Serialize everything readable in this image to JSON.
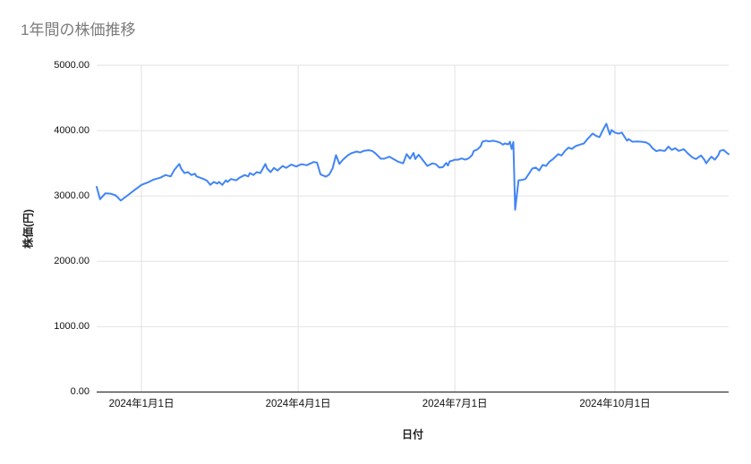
{
  "chart_data": {
    "type": "line",
    "title": "1年間の株価推移",
    "xlabel": "日付",
    "ylabel": "株価(円)",
    "ylim": [
      0,
      5000
    ],
    "grid": true,
    "legend_position": "none",
    "colors": {
      "line": "#4285f4",
      "grid": "#e2e2e2",
      "axis_line": "#333333",
      "title_text": "#7b7b7b",
      "tick_text": "#111111"
    },
    "y_ticks": [
      {
        "value": 0,
        "label": "0.00"
      },
      {
        "value": 1000,
        "label": "1000.00"
      },
      {
        "value": 2000,
        "label": "2000.00"
      },
      {
        "value": 3000,
        "label": "3000.00"
      },
      {
        "value": 4000,
        "label": "4000.00"
      },
      {
        "value": 5000,
        "label": "5000.00"
      }
    ],
    "x_domain": [
      0,
      367
    ],
    "x_ticks": [
      {
        "x": 26,
        "label": "2024年1月1日"
      },
      {
        "x": 117,
        "label": "2024年4月1日"
      },
      {
        "x": 208,
        "label": "2024年7月1日"
      },
      {
        "x": 301,
        "label": "2024年10月1日"
      }
    ],
    "series": [
      {
        "color": "#4285f4",
        "points": [
          [
            0,
            3140
          ],
          [
            2,
            2950
          ],
          [
            5,
            3040
          ],
          [
            8,
            3035
          ],
          [
            11,
            3010
          ],
          [
            14,
            2930
          ],
          [
            18,
            3010
          ],
          [
            22,
            3090
          ],
          [
            26,
            3170
          ],
          [
            30,
            3210
          ],
          [
            33,
            3250
          ],
          [
            37,
            3280
          ],
          [
            40,
            3320
          ],
          [
            43,
            3300
          ],
          [
            45,
            3395
          ],
          [
            48,
            3490
          ],
          [
            49,
            3420
          ],
          [
            51,
            3350
          ],
          [
            53,
            3365
          ],
          [
            55,
            3320
          ],
          [
            57,
            3340
          ],
          [
            58,
            3300
          ],
          [
            60,
            3280
          ],
          [
            62,
            3260
          ],
          [
            64,
            3235
          ],
          [
            66,
            3170
          ],
          [
            68,
            3215
          ],
          [
            70,
            3190
          ],
          [
            71,
            3215
          ],
          [
            73,
            3170
          ],
          [
            75,
            3240
          ],
          [
            76,
            3215
          ],
          [
            78,
            3260
          ],
          [
            81,
            3240
          ],
          [
            83,
            3280
          ],
          [
            86,
            3320
          ],
          [
            88,
            3300
          ],
          [
            89,
            3350
          ],
          [
            91,
            3320
          ],
          [
            93,
            3365
          ],
          [
            95,
            3350
          ],
          [
            96,
            3395
          ],
          [
            98,
            3490
          ],
          [
            99,
            3420
          ],
          [
            101,
            3365
          ],
          [
            103,
            3430
          ],
          [
            105,
            3390
          ],
          [
            108,
            3460
          ],
          [
            110,
            3430
          ],
          [
            113,
            3480
          ],
          [
            116,
            3450
          ],
          [
            117,
            3465
          ],
          [
            119,
            3485
          ],
          [
            122,
            3470
          ],
          [
            126,
            3520
          ],
          [
            128,
            3510
          ],
          [
            130,
            3330
          ],
          [
            133,
            3295
          ],
          [
            135,
            3325
          ],
          [
            137,
            3420
          ],
          [
            139,
            3625
          ],
          [
            141,
            3490
          ],
          [
            143,
            3555
          ],
          [
            146,
            3625
          ],
          [
            148,
            3655
          ],
          [
            151,
            3680
          ],
          [
            153,
            3665
          ],
          [
            155,
            3690
          ],
          [
            158,
            3700
          ],
          [
            160,
            3690
          ],
          [
            162,
            3650
          ],
          [
            165,
            3570
          ],
          [
            167,
            3570
          ],
          [
            170,
            3600
          ],
          [
            172,
            3570
          ],
          [
            175,
            3525
          ],
          [
            178,
            3500
          ],
          [
            180,
            3640
          ],
          [
            182,
            3570
          ],
          [
            184,
            3660
          ],
          [
            185,
            3565
          ],
          [
            187,
            3630
          ],
          [
            190,
            3530
          ],
          [
            192,
            3460
          ],
          [
            195,
            3500
          ],
          [
            197,
            3485
          ],
          [
            199,
            3435
          ],
          [
            201,
            3440
          ],
          [
            203,
            3505
          ],
          [
            204,
            3465
          ],
          [
            205,
            3530
          ],
          [
            207,
            3545
          ],
          [
            208,
            3555
          ],
          [
            210,
            3555
          ],
          [
            212,
            3575
          ],
          [
            214,
            3555
          ],
          [
            216,
            3575
          ],
          [
            218,
            3625
          ],
          [
            219,
            3690
          ],
          [
            221,
            3710
          ],
          [
            223,
            3760
          ],
          [
            224,
            3830
          ],
          [
            226,
            3845
          ],
          [
            228,
            3835
          ],
          [
            230,
            3845
          ],
          [
            232,
            3835
          ],
          [
            234,
            3820
          ],
          [
            236,
            3785
          ],
          [
            237,
            3805
          ],
          [
            239,
            3790
          ],
          [
            240,
            3830
          ],
          [
            241,
            3720
          ],
          [
            242,
            3825
          ],
          [
            243,
            2790
          ],
          [
            245,
            3240
          ],
          [
            247,
            3245
          ],
          [
            249,
            3260
          ],
          [
            251,
            3340
          ],
          [
            253,
            3420
          ],
          [
            255,
            3435
          ],
          [
            257,
            3390
          ],
          [
            259,
            3475
          ],
          [
            261,
            3460
          ],
          [
            263,
            3525
          ],
          [
            265,
            3565
          ],
          [
            266,
            3590
          ],
          [
            268,
            3640
          ],
          [
            270,
            3620
          ],
          [
            272,
            3690
          ],
          [
            274,
            3740
          ],
          [
            276,
            3720
          ],
          [
            278,
            3760
          ],
          [
            280,
            3780
          ],
          [
            283,
            3805
          ],
          [
            285,
            3870
          ],
          [
            288,
            3955
          ],
          [
            290,
            3920
          ],
          [
            292,
            3900
          ],
          [
            294,
            4010
          ],
          [
            296,
            4105
          ],
          [
            298,
            3940
          ],
          [
            299,
            4010
          ],
          [
            301,
            3970
          ],
          [
            303,
            3955
          ],
          [
            305,
            3970
          ],
          [
            308,
            3845
          ],
          [
            309,
            3870
          ],
          [
            311,
            3830
          ],
          [
            314,
            3835
          ],
          [
            316,
            3830
          ],
          [
            319,
            3820
          ],
          [
            321,
            3790
          ],
          [
            323,
            3725
          ],
          [
            325,
            3685
          ],
          [
            327,
            3700
          ],
          [
            328,
            3695
          ],
          [
            330,
            3690
          ],
          [
            332,
            3755
          ],
          [
            334,
            3705
          ],
          [
            336,
            3730
          ],
          [
            338,
            3690
          ],
          [
            341,
            3715
          ],
          [
            343,
            3660
          ],
          [
            346,
            3590
          ],
          [
            348,
            3565
          ],
          [
            351,
            3620
          ],
          [
            353,
            3550
          ],
          [
            354,
            3500
          ],
          [
            356,
            3570
          ],
          [
            357,
            3600
          ],
          [
            359,
            3555
          ],
          [
            361,
            3625
          ],
          [
            362,
            3690
          ],
          [
            364,
            3705
          ],
          [
            366,
            3660
          ],
          [
            367,
            3640
          ]
        ]
      }
    ]
  }
}
